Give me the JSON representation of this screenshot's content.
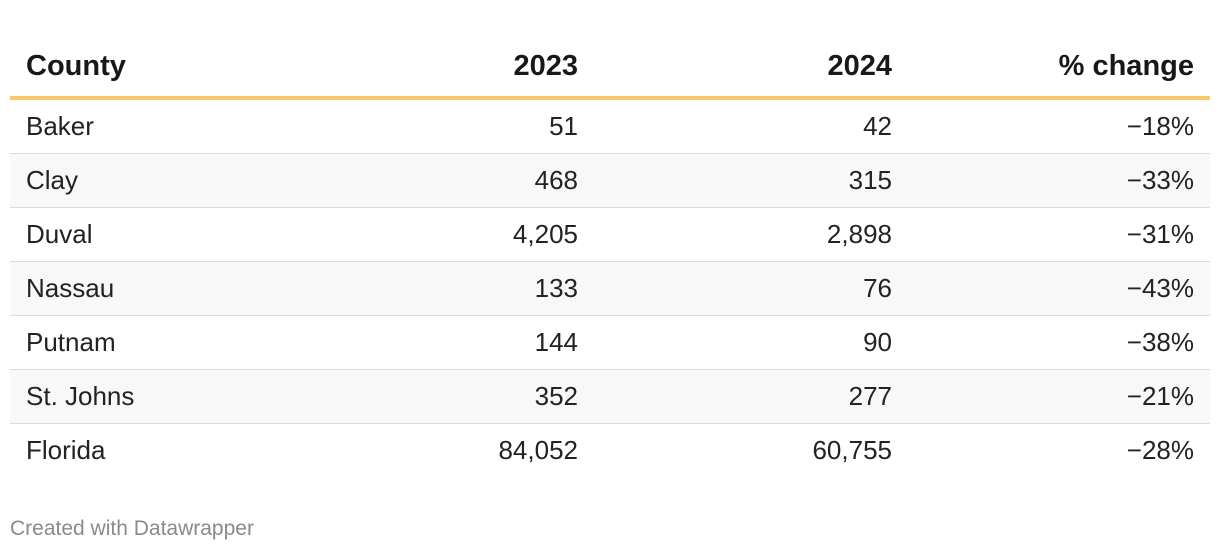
{
  "chart_data": {
    "type": "table",
    "columns": [
      "County",
      "2023",
      "2024",
      "% change"
    ],
    "rows": [
      [
        "Baker",
        "51",
        "42",
        "−18%"
      ],
      [
        "Clay",
        "468",
        "315",
        "−33%"
      ],
      [
        "Duval",
        "4,205",
        "2,898",
        "−31%"
      ],
      [
        "Nassau",
        "133",
        "76",
        "−43%"
      ],
      [
        "Putnam",
        "144",
        "90",
        "−38%"
      ],
      [
        "St. Johns",
        "352",
        "277",
        "−21%"
      ],
      [
        "Florida",
        "84,052",
        "60,755",
        "−28%"
      ]
    ],
    "header_rule_color": "#f7c96b"
  },
  "footer": {
    "credit": "Created with Datawrapper"
  }
}
